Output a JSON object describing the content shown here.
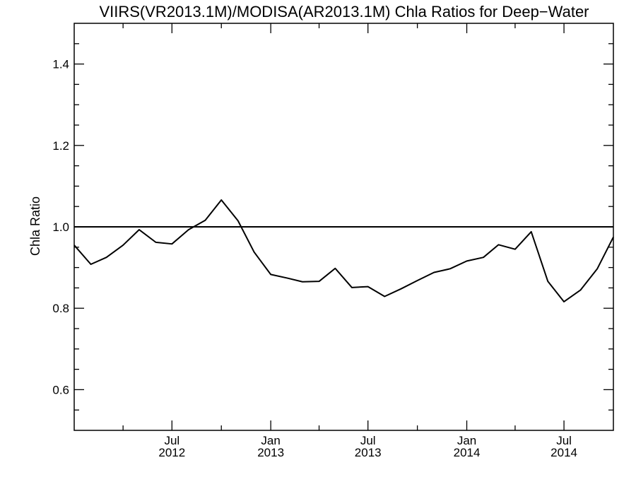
{
  "chart_data": {
    "type": "line",
    "title": "VIIRS(VR2013.1M)/MODISA(AR2013.1M)  Chla Ratios for Deep−Water",
    "ylabel": "Chla Ratio",
    "xlabel": "",
    "ylim": [
      0.5,
      1.5
    ],
    "xlim": [
      "2012-01-01",
      "2014-10-01"
    ],
    "grid": false,
    "reference_line": 1.0,
    "y_ticks": [
      {
        "value": 0.6,
        "label": "0.6"
      },
      {
        "value": 0.8,
        "label": "0.8"
      },
      {
        "value": 1.0,
        "label": "1.0"
      },
      {
        "value": 1.2,
        "label": "1.2"
      },
      {
        "value": 1.4,
        "label": "1.4"
      }
    ],
    "x_ticks": [
      {
        "date": "2012-07-01",
        "month": "Jul",
        "year": "2012"
      },
      {
        "date": "2013-01-01",
        "month": "Jan",
        "year": "2013"
      },
      {
        "date": "2013-07-01",
        "month": "Jul",
        "year": "2013"
      },
      {
        "date": "2014-01-01",
        "month": "Jan",
        "year": "2014"
      },
      {
        "date": "2014-07-01",
        "month": "Jul",
        "year": "2014"
      }
    ],
    "series": [
      {
        "x": [
          "2012-01-01",
          "2012-02-01",
          "2012-03-01",
          "2012-04-01",
          "2012-05-01",
          "2012-06-01",
          "2012-07-01",
          "2012-08-01",
          "2012-09-01",
          "2012-10-01",
          "2012-11-01",
          "2012-12-01",
          "2013-01-01",
          "2013-02-01",
          "2013-03-01",
          "2013-04-01",
          "2013-05-01",
          "2013-06-01",
          "2013-07-01",
          "2013-08-01",
          "2013-09-01",
          "2013-10-01",
          "2013-11-01",
          "2013-12-01",
          "2014-01-01",
          "2014-02-01",
          "2014-03-01",
          "2014-04-01",
          "2014-05-01",
          "2014-06-01",
          "2014-07-01",
          "2014-08-01",
          "2014-09-01",
          "2014-10-01"
        ],
        "values": [
          0.955,
          0.908,
          0.925,
          0.955,
          0.993,
          0.962,
          0.958,
          0.993,
          1.016,
          1.066,
          1.015,
          0.938,
          0.883,
          0.874,
          0.865,
          0.866,
          0.898,
          0.851,
          0.853,
          0.829,
          0.848,
          0.868,
          0.888,
          0.897,
          0.916,
          0.925,
          0.956,
          0.945,
          0.988,
          0.866,
          0.816,
          0.845,
          0.897,
          0.975
        ]
      }
    ]
  }
}
